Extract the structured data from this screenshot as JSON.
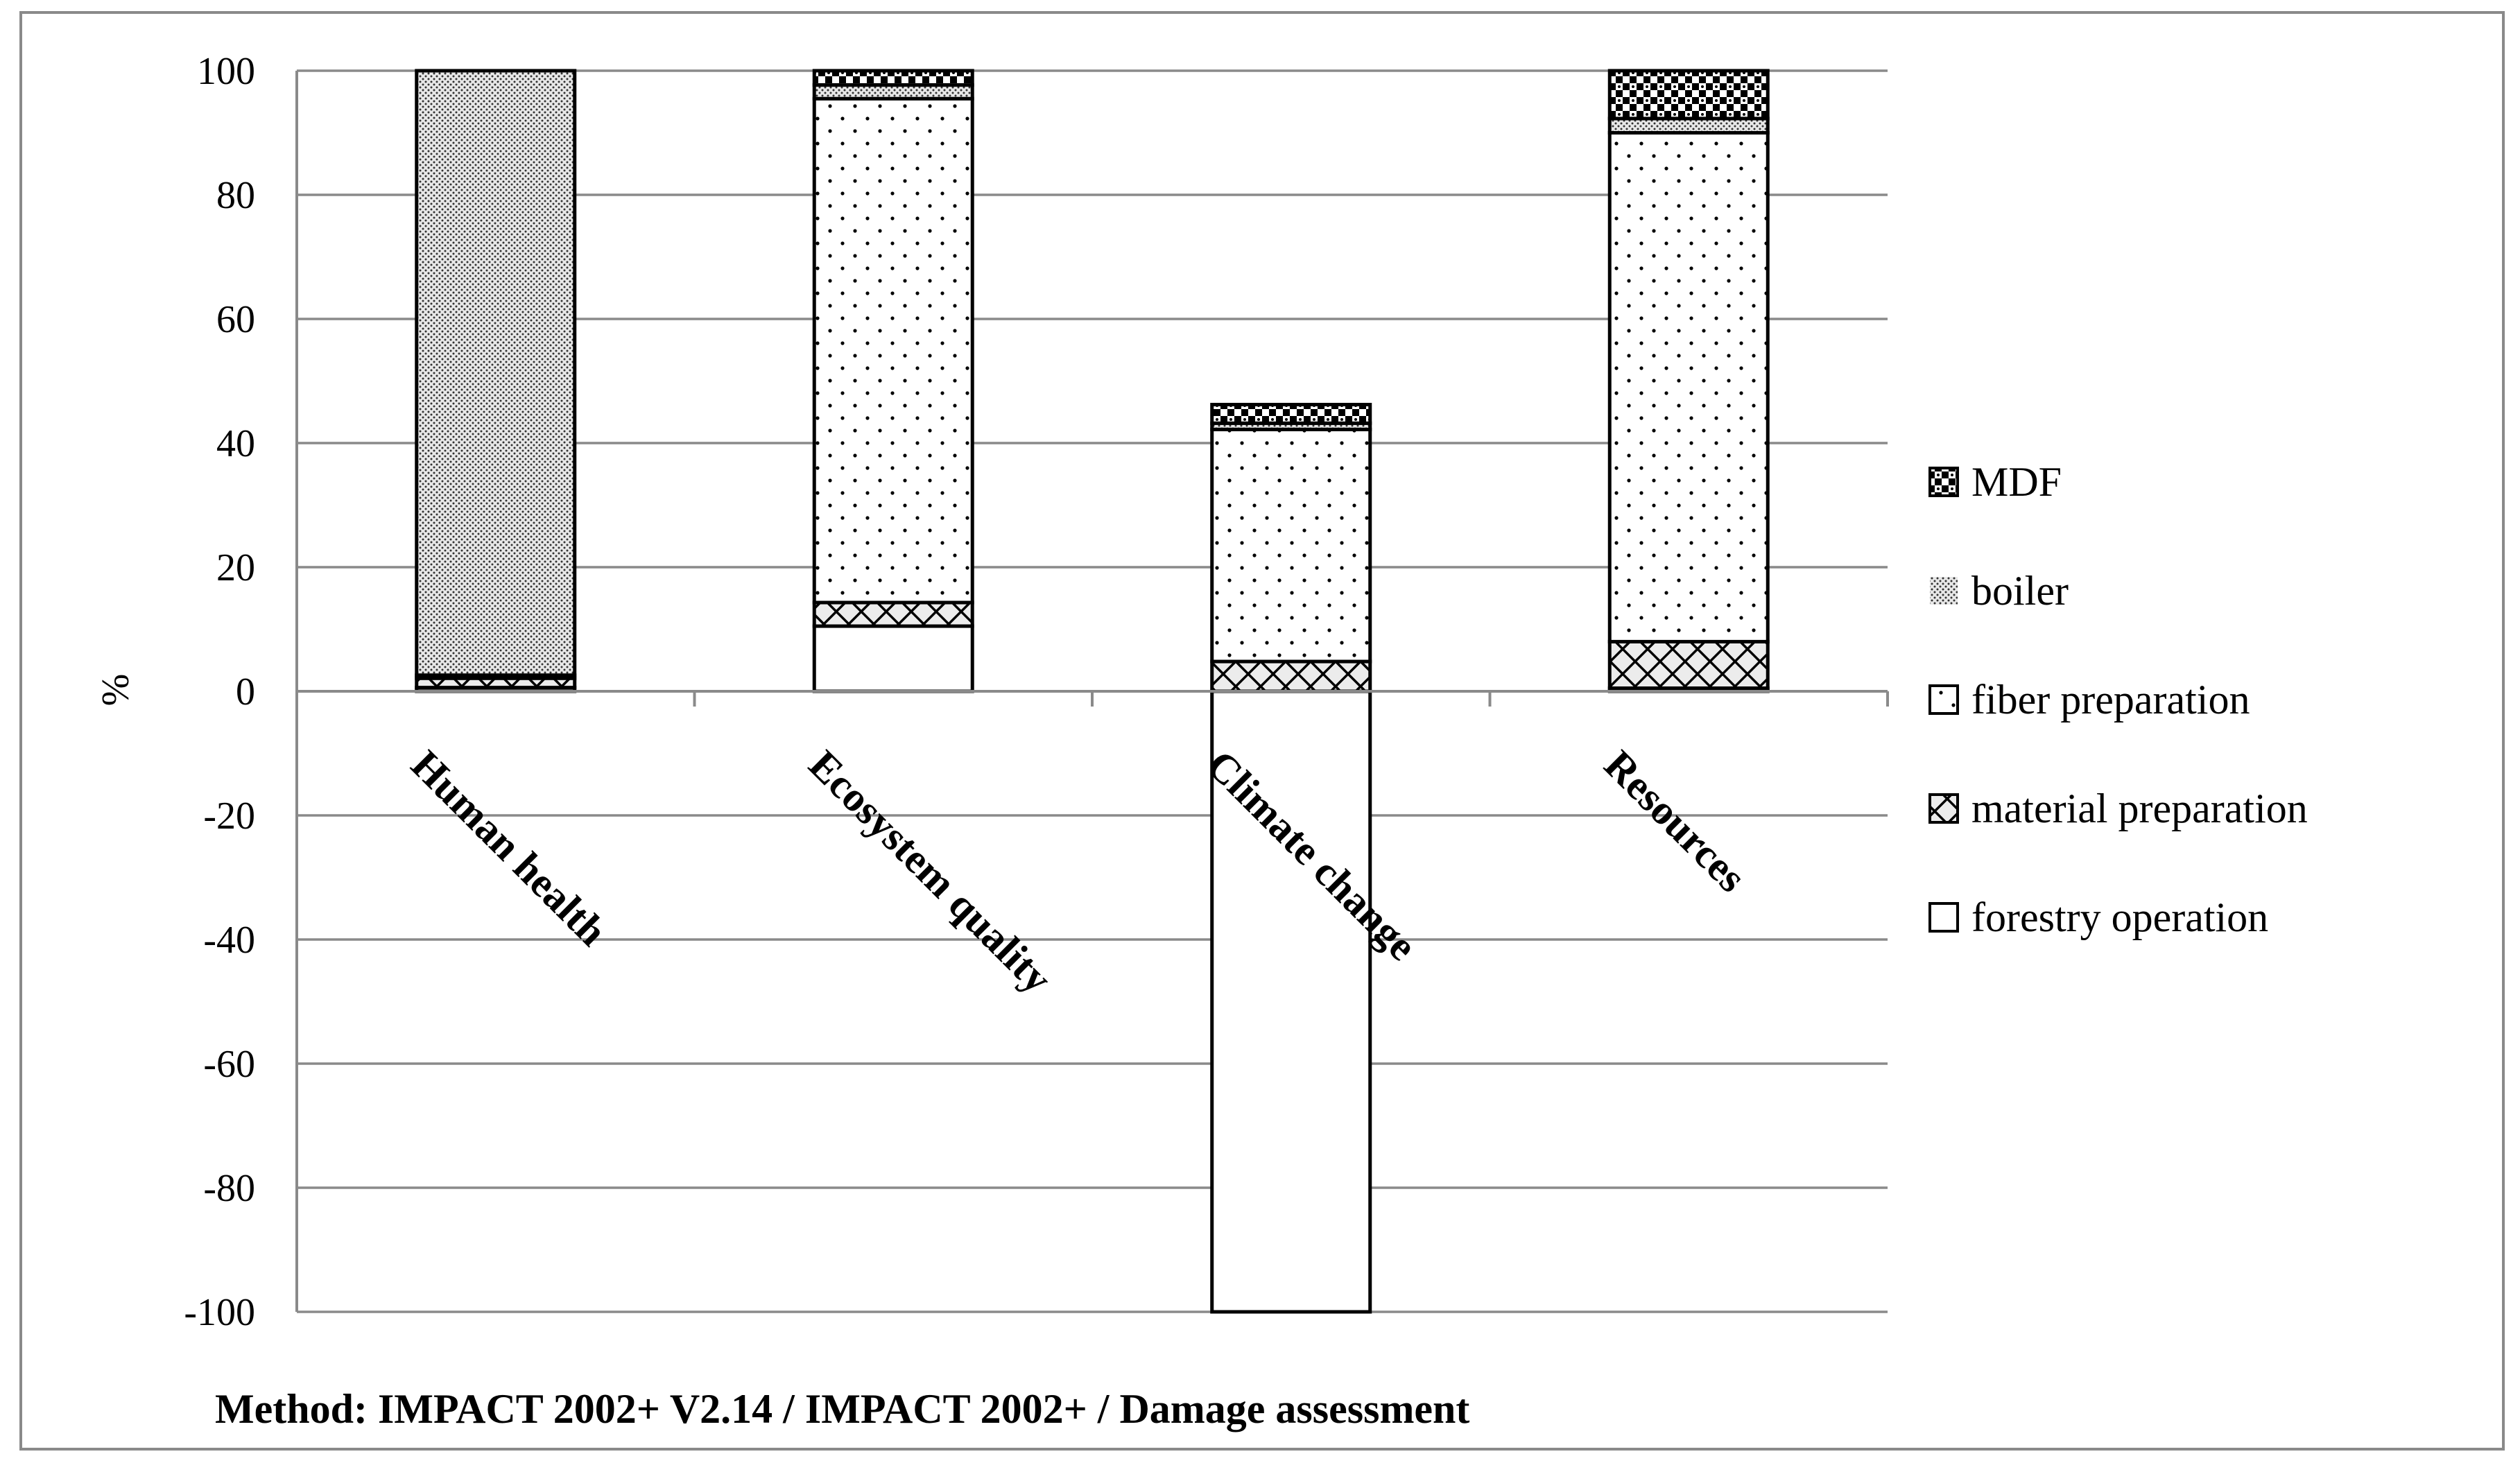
{
  "chart_data": {
    "type": "bar",
    "stacked": true,
    "title": "",
    "xlabel": "",
    "ylabel": "%",
    "ylim": [
      -100,
      100
    ],
    "yticks": [
      100,
      80,
      60,
      40,
      20,
      0,
      -20,
      -40,
      -60,
      -80,
      -100
    ],
    "categories": [
      "Human health",
      "Ecosystem quality",
      "Climate change",
      "Resources"
    ],
    "series": [
      {
        "name": "forestry operation",
        "pattern": "none",
        "values": [
          0.6,
          10.5,
          -100,
          0.5
        ]
      },
      {
        "name": "material preparation",
        "pattern": "crosshatch",
        "values": [
          1.5,
          3.8,
          4.8,
          7.5
        ]
      },
      {
        "name": "fiber preparation",
        "pattern": "sparse-dots",
        "values": [
          0.5,
          81.2,
          37.4,
          82.0
        ]
      },
      {
        "name": "boiler",
        "pattern": "dense-dots",
        "values": [
          97.4,
          2.2,
          1.0,
          2.3
        ]
      },
      {
        "name": "MDF",
        "pattern": "checker",
        "values": [
          0.0,
          2.3,
          3.0,
          7.7
        ]
      }
    ],
    "legend_order": [
      "MDF",
      "boiler",
      "fiber preparation",
      "material preparation",
      "forestry operation"
    ],
    "legend_position": "right",
    "grid": true,
    "footnote": "Method: IMPACT 2002+ V2.14 / IMPACT 2002+ / Damage assessment"
  }
}
